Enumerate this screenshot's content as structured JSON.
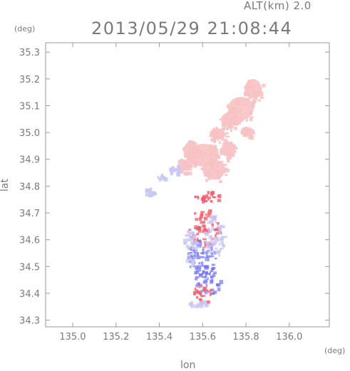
{
  "header": {
    "altitude": "ALT(km) 2.0",
    "datetime": "2013/05/29 21:08:44"
  },
  "axes": {
    "x_unit": "(deg)",
    "y_unit": "(deg)",
    "xlabel": "lon",
    "ylabel": "lat"
  },
  "chart_data": {
    "type": "heatmap",
    "xlim": [
      134.875,
      136.185
    ],
    "ylim": [
      34.275,
      35.335
    ],
    "x_ticks": [
      "135.0",
      "135.2",
      "135.4",
      "135.6",
      "135.8",
      "136.0"
    ],
    "y_ticks": [
      "34.3",
      "34.4",
      "34.5",
      "34.6",
      "34.7",
      "34.8",
      "34.9",
      "35.0",
      "35.1",
      "35.2",
      "35.3"
    ],
    "grid": false,
    "colors": {
      "positive_strong": "#f05a6a",
      "positive_weak": "#f7c2c4",
      "negative_strong": "#6f6ff0",
      "negative_weak": "#c8c8f5"
    }
  }
}
